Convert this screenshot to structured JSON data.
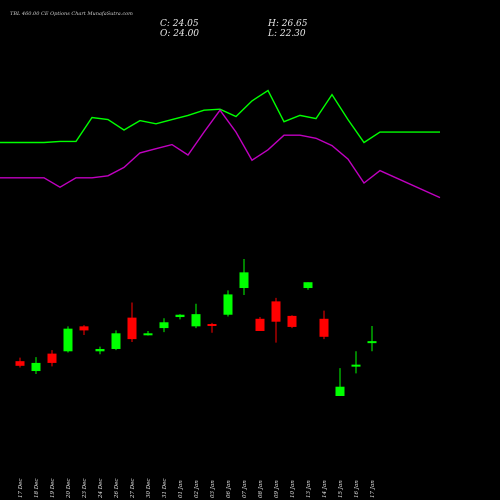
{
  "header": {
    "title": "TBL 460.00 CE Options Chart MunafaSutra.com",
    "close": "C: 24.05",
    "open": "O: 24.00",
    "high": "H: 26.65",
    "low": "L: 22.30"
  },
  "colors": {
    "background": "#000000",
    "up": "#00ff00",
    "down": "#ff0000",
    "upper_line": "#00ff00",
    "lower_line": "#c000c0",
    "text": "#e8e8e8"
  },
  "chart_data": {
    "type": "candlestick",
    "grid": false,
    "categories": [
      "17 Dec",
      "18 Dec",
      "19 Dec",
      "20 Dec",
      "23 Dec",
      "24 Dec",
      "26 Dec",
      "27 Dec",
      "30 Dec",
      "31 Dec",
      "01 Jan",
      "02 Jan",
      "03 Jan",
      "06 Jan",
      "07 Jan",
      "08 Jan",
      "09 Jan",
      "10 Jan",
      "13 Jan",
      "14 Jan",
      "15 Jan",
      "16 Jan",
      "17 Jan",
      "20 Jan"
    ],
    "candles": [
      {
        "open": 20.6,
        "high": 21.2,
        "low": 19.5,
        "close": 19.8
      },
      {
        "open": 18.9,
        "high": 21.3,
        "low": 18.4,
        "close": 20.3
      },
      {
        "open": 21.9,
        "high": 22.5,
        "low": 19.7,
        "close": 20.3
      },
      {
        "open": 22.3,
        "high": 26.6,
        "low": 22.1,
        "close": 26.2
      },
      {
        "open": 26.6,
        "high": 26.8,
        "low": 25.1,
        "close": 25.9
      },
      {
        "open": 22.3,
        "high": 23.1,
        "low": 21.8,
        "close": 22.7
      },
      {
        "open": 22.7,
        "high": 25.9,
        "low": 22.5,
        "close": 25.4
      },
      {
        "open": 28.1,
        "high": 30.7,
        "low": 23.9,
        "close": 24.4
      },
      {
        "open": 25.4,
        "high": 25.8,
        "low": 25.0,
        "close": 25.4
      },
      {
        "open": 26.3,
        "high": 28.0,
        "low": 25.6,
        "close": 27.3
      },
      {
        "open": 28.2,
        "high": 28.7,
        "low": 27.8,
        "close": 28.6
      },
      {
        "open": 26.6,
        "high": 30.5,
        "low": 26.3,
        "close": 28.7
      },
      {
        "open": 27.0,
        "high": 27.2,
        "low": 25.5,
        "close": 26.8
      },
      {
        "open": 28.6,
        "high": 32.8,
        "low": 28.3,
        "close": 32.1
      },
      {
        "open": 33.2,
        "high": 38.2,
        "low": 32.0,
        "close": 35.9
      },
      {
        "open": 27.9,
        "high": 28.2,
        "low": 25.9,
        "close": 25.8
      },
      {
        "open": 30.9,
        "high": 31.5,
        "low": 23.8,
        "close": 27.4
      },
      {
        "open": 28.4,
        "high": 28.5,
        "low": 26.3,
        "close": 26.5
      },
      {
        "open": 33.2,
        "high": 34.2,
        "low": 32.9,
        "close": 34.2
      },
      {
        "open": 27.9,
        "high": 29.3,
        "low": 24.4,
        "close": 24.8
      },
      {
        "open": 14.6,
        "high": 19.4,
        "low": 14.6,
        "close": 16.2
      },
      {
        "open": 19.8,
        "high": 22.3,
        "low": 18.5,
        "close": 20.0
      },
      {
        "open": 24.0,
        "high": 26.65,
        "low": 22.3,
        "close": 24.05
      },
      {
        "open": 24.0,
        "high": 26.65,
        "low": 22.3,
        "close": 24.05
      }
    ],
    "upper_line": [
      88,
      88,
      89,
      89,
      112,
      110,
      100,
      109,
      106,
      110,
      114,
      119,
      120,
      113,
      128,
      138,
      108,
      114,
      111,
      134,
      110,
      88,
      98,
      98
    ],
    "lower_line": [
      54,
      54,
      45,
      54,
      54,
      56,
      64,
      78,
      82,
      86,
      76,
      98,
      119,
      98,
      71,
      81,
      95,
      95,
      92,
      85,
      72,
      49,
      61,
      35
    ]
  }
}
